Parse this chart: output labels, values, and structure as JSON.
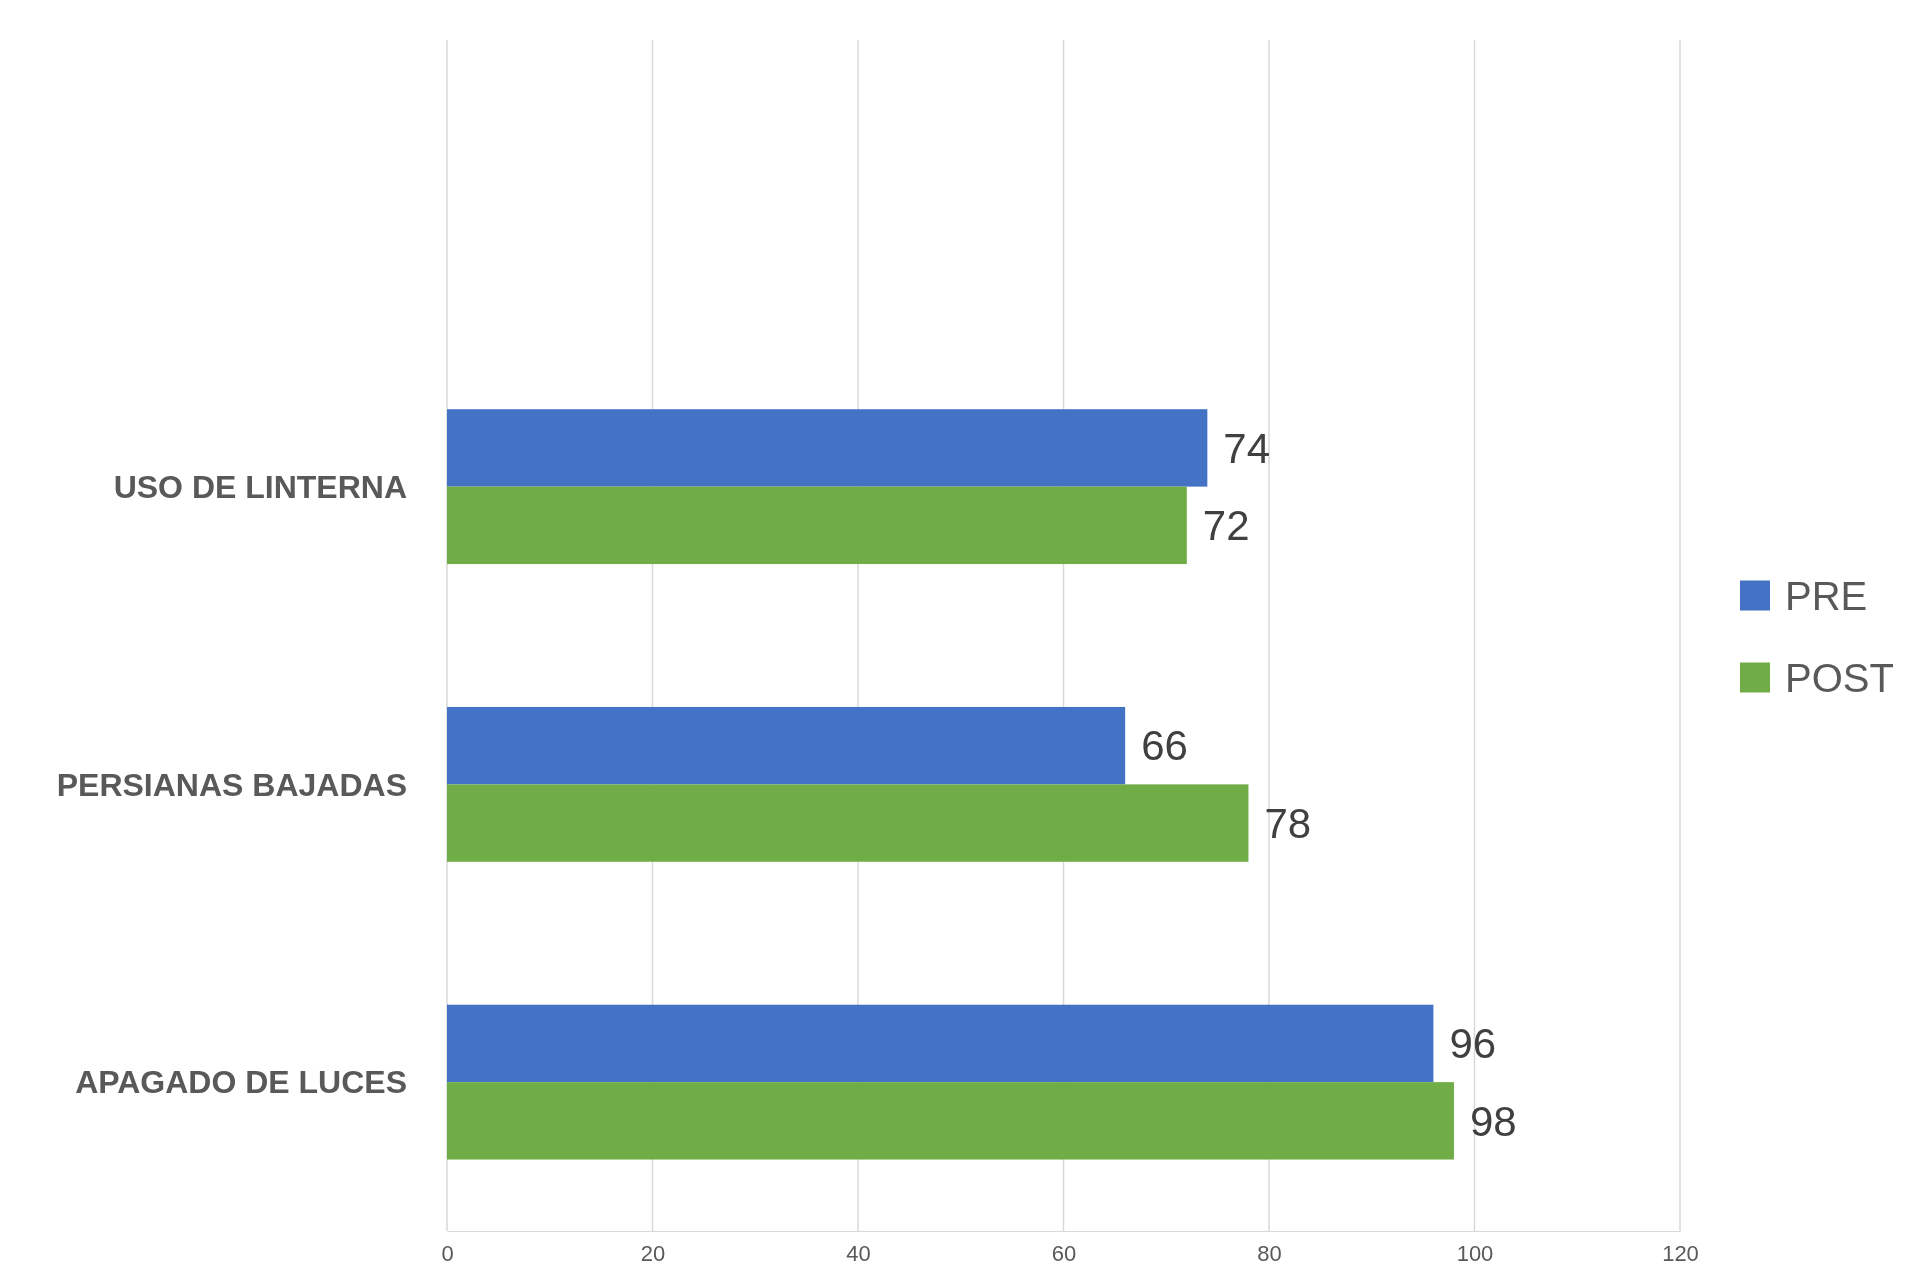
{
  "chart_data": {
    "type": "bar",
    "orientation": "horizontal",
    "categories": [
      null,
      "USO DE LINTERNA",
      "PERSIANAS BAJADAS",
      "APAGADO DE LUCES"
    ],
    "series": [
      {
        "name": "PRE",
        "color": "#4472c4",
        "values": [
          null,
          74,
          66,
          96
        ]
      },
      {
        "name": "POST",
        "color": "#70ad47",
        "values": [
          null,
          72,
          78,
          98
        ]
      }
    ],
    "xlim": [
      0,
      120
    ],
    "xticks": [
      0,
      20,
      40,
      60,
      80,
      100,
      120
    ],
    "grid": "x",
    "legend": "right",
    "data_labels": true
  }
}
